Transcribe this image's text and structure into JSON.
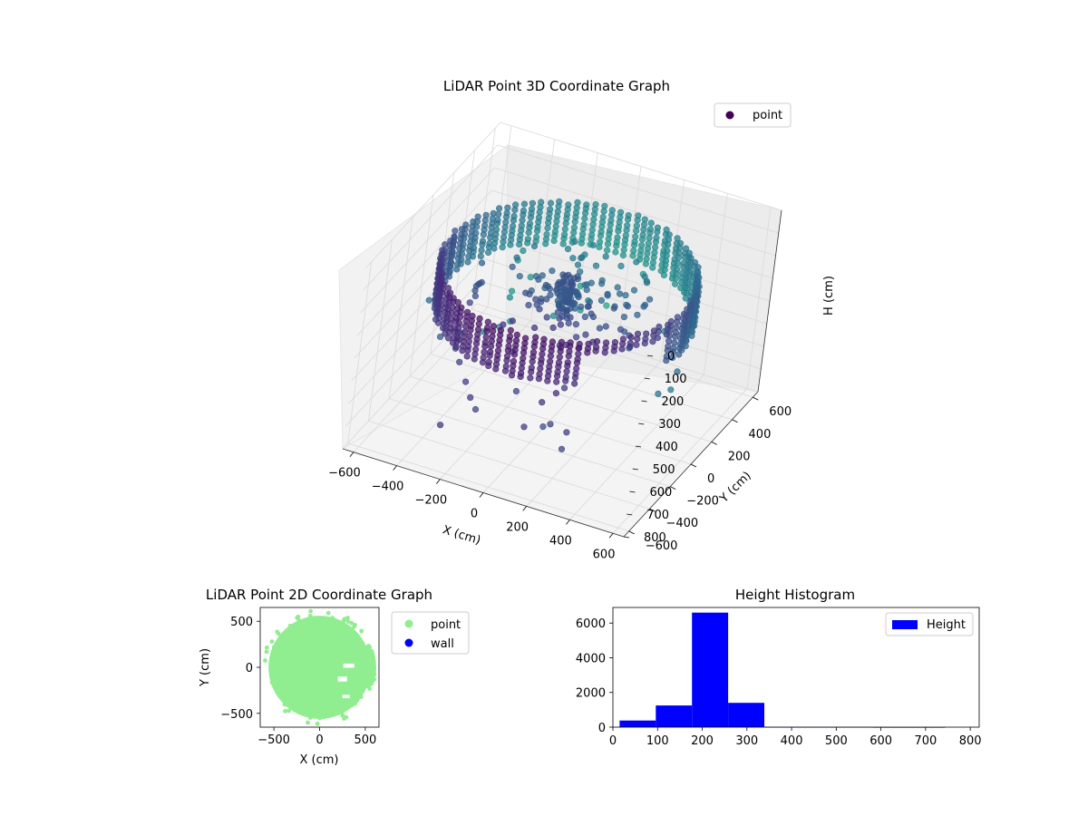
{
  "chart_data": [
    {
      "type": "scatter",
      "projection": "3d",
      "title": "LiDAR Point 3D Coordinate Graph",
      "xlabel": "X (cm)",
      "ylabel": "Y (cm)",
      "zlabel": "H (cm)",
      "xlim": [
        -650,
        650
      ],
      "ylim": [
        -650,
        650
      ],
      "zlim": [
        0,
        800
      ],
      "z_inverted": true,
      "x_ticks": [
        "−600",
        "−400",
        "−200",
        "0",
        "200",
        "400",
        "600"
      ],
      "y_ticks": [
        "−600",
        "−400",
        "−200",
        "0",
        "200",
        "400",
        "600"
      ],
      "z_ticks": [
        "0",
        "100",
        "200",
        "300",
        "400",
        "500",
        "600",
        "700",
        "800"
      ],
      "colormap": "viridis",
      "legend": {
        "position": "upper-right",
        "entries": [
          "point"
        ]
      },
      "grid": true,
      "series": [
        {
          "name": "point",
          "description_points": "dense ring of points at radius ~550 cm, heights ~150–330 cm, with sparse outliers to ~600 cm"
        }
      ]
    },
    {
      "type": "scatter",
      "title": "LiDAR Point 2D Coordinate Graph",
      "xlabel": "X (cm)",
      "ylabel": "Y (cm)",
      "xlim": [
        -650,
        650
      ],
      "ylim": [
        -650,
        650
      ],
      "x_ticks": [
        "−500",
        "0",
        "500"
      ],
      "y_ticks": [
        "−500",
        "0",
        "500"
      ],
      "legend": {
        "position": "outside-right",
        "entries": [
          "point",
          "wall"
        ]
      },
      "series": [
        {
          "name": "point",
          "color": "#90ee90"
        },
        {
          "name": "wall",
          "color": "#0000ff"
        }
      ]
    },
    {
      "type": "bar",
      "subtype": "histogram",
      "title": "Height Histogram",
      "xlim": [
        0,
        820
      ],
      "ylim": [
        0,
        6900
      ],
      "x_ticks": [
        "0",
        "100",
        "200",
        "300",
        "400",
        "500",
        "600",
        "700",
        "800"
      ],
      "y_ticks": [
        "0",
        "2000",
        "4000",
        "6000"
      ],
      "legend": {
        "position": "upper-right",
        "entries": [
          "Height"
        ]
      },
      "color": "#0000ff",
      "bins": [
        {
          "x0": 15,
          "x1": 96,
          "count": 380
        },
        {
          "x0": 96,
          "x1": 177,
          "count": 1250
        },
        {
          "x0": 177,
          "x1": 258,
          "count": 6600
        },
        {
          "x0": 258,
          "x1": 339,
          "count": 1400
        },
        {
          "x0": 339,
          "x1": 420,
          "count": 8
        },
        {
          "x0": 420,
          "x1": 501,
          "count": 4
        },
        {
          "x0": 501,
          "x1": 582,
          "count": 3
        },
        {
          "x0": 582,
          "x1": 663,
          "count": 2
        },
        {
          "x0": 663,
          "x1": 744,
          "count": 1
        },
        {
          "x0": 744,
          "x1": 825,
          "count": 0
        }
      ]
    }
  ]
}
